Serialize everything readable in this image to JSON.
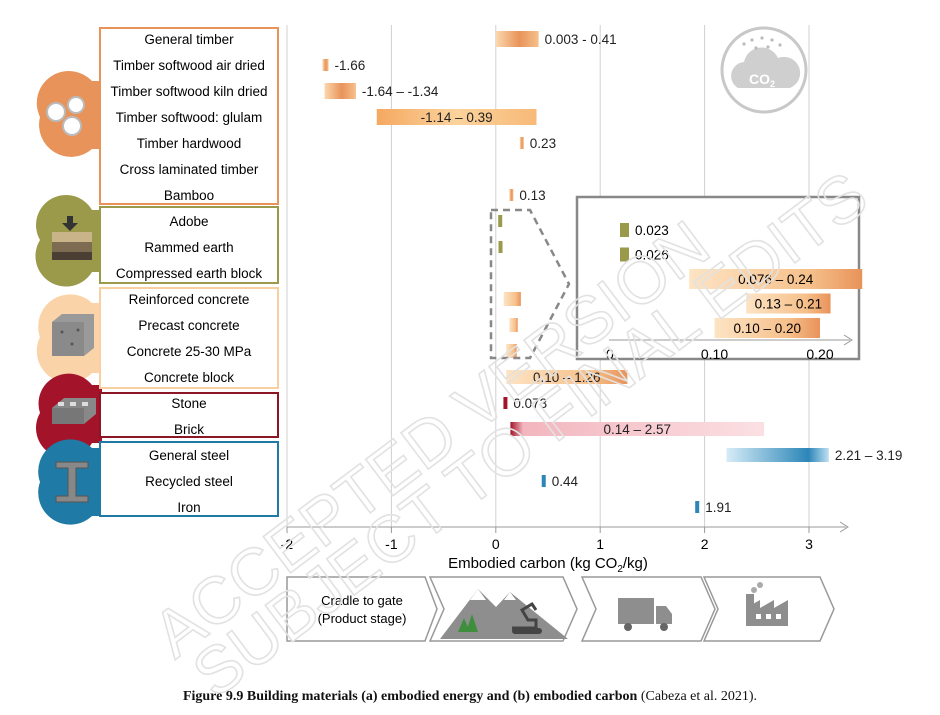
{
  "chart_data": {
    "type": "bar",
    "orientation": "horizontal",
    "xlabel": "Embodied carbon (kg CO",
    "xlabel_sub": "2",
    "xlabel_tail": "/kg)",
    "xlim": [
      -2,
      3
    ],
    "xticks": [
      "-2",
      "-1",
      "0",
      "1",
      "2",
      "3"
    ],
    "grid": true,
    "groups": [
      {
        "name": "Timber",
        "color": "#e8935a",
        "items": [
          {
            "label": "General timber",
            "min": 0.003,
            "max": 0.41,
            "text": "0.003 - 0.41"
          },
          {
            "label": "Timber softwood air dried",
            "min": -1.66,
            "max": -1.66,
            "text": "-1.66"
          },
          {
            "label": "Timber softwood kiln dried",
            "min": -1.64,
            "max": -1.34,
            "text": "-1.64 – -1.34"
          },
          {
            "label": "Timber softwood: glulam",
            "min": -1.14,
            "max": 0.39,
            "text": "-1.14 – 0.39"
          },
          {
            "label": "Timber hardwood",
            "min": 0.23,
            "max": 0.23,
            "text": "0.23"
          },
          {
            "label": "Cross laminated timber",
            "min": null,
            "max": null,
            "text": ""
          },
          {
            "label": "Bamboo",
            "min": 0.13,
            "max": 0.13,
            "text": "0.13"
          }
        ]
      },
      {
        "name": "Earth",
        "color": "#9a9a4a",
        "items": [
          {
            "label": "Adobe",
            "min": 0.023,
            "max": 0.023,
            "text": "0.023"
          },
          {
            "label": "Rammed earth",
            "min": 0.026,
            "max": 0.026,
            "text": "0.026"
          },
          {
            "label": "Compressed earth block",
            "min": null,
            "max": null,
            "text": ""
          }
        ]
      },
      {
        "name": "Concrete",
        "color": "#f4b57a",
        "items": [
          {
            "label": "Reinforced concrete",
            "min": 0.076,
            "max": 0.24,
            "text": "0.076 – 0.24"
          },
          {
            "label": "Precast concrete",
            "min": 0.13,
            "max": 0.21,
            "text": "0.13 – 0.21"
          },
          {
            "label": "Concrete 25-30 MPa",
            "min": 0.1,
            "max": 0.2,
            "text": "0.10 – 0.20"
          },
          {
            "label": "Concrete block",
            "min": 0.1,
            "max": 1.26,
            "text": "0.10 – 1.26"
          }
        ]
      },
      {
        "name": "Masonry",
        "color": "#a3142a",
        "items": [
          {
            "label": "Stone",
            "min": 0.073,
            "max": 0.073,
            "text": "0.073"
          },
          {
            "label": "Brick",
            "min": 0.14,
            "max": 2.57,
            "text": "0.14 – 2.57"
          }
        ]
      },
      {
        "name": "Metals",
        "color": "#2c86b8",
        "items": [
          {
            "label": "General steel",
            "min": 2.21,
            "max": 3.19,
            "text": "2.21 – 3.19"
          },
          {
            "label": "Recycled steel",
            "min": 0.44,
            "max": 0.44,
            "text": "0.44"
          },
          {
            "label": "Iron",
            "min": 1.91,
            "max": 1.91,
            "text": "1.91"
          }
        ]
      }
    ],
    "inset": {
      "xlim": [
        0,
        0.24
      ],
      "xticks": [
        "0",
        "0.10",
        "0.20"
      ],
      "rows": [
        "Adobe",
        "Rammed earth",
        "Reinforced concrete",
        "Precast concrete",
        "Concrete 25-30 MPa"
      ]
    }
  },
  "flow": {
    "step1_line1": "Cradle to gate",
    "step1_line2": "(Product stage)",
    "co2_label": "CO",
    "co2_sub": "2"
  },
  "caption": {
    "bold": "Figure 9.9 Building materials (a) embodied energy and (b) embodied carbon",
    "rest": " (Cabeza et al. 2021)."
  },
  "watermark": {
    "line1": "ACCEPTED VERSION",
    "line2": "SUBJECT TO FINAL EDITS"
  }
}
